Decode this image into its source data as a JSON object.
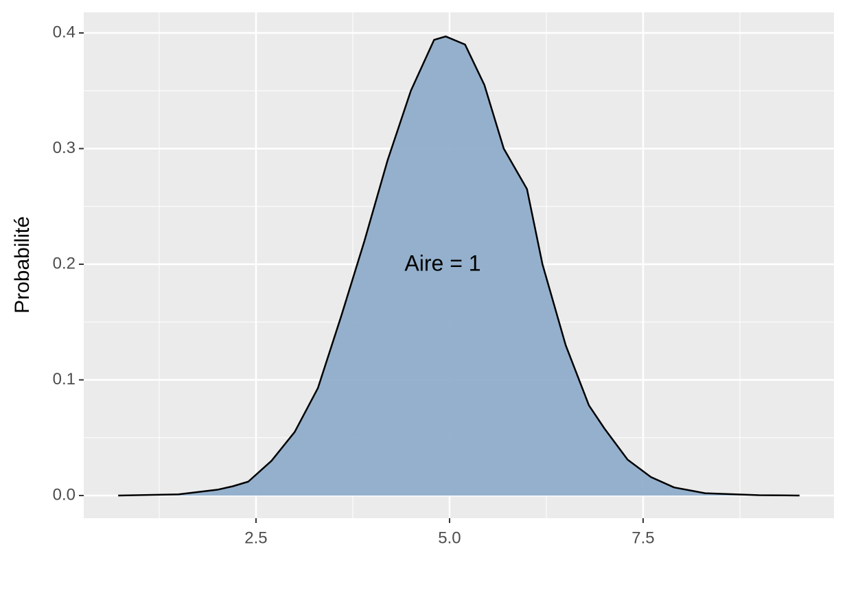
{
  "chart_data": {
    "type": "area",
    "y_label": "Probabilité",
    "annotation": "Aire = 1",
    "x": [
      0.72,
      1.5,
      2.0,
      2.2,
      2.4,
      2.7,
      3.0,
      3.3,
      3.6,
      3.9,
      4.2,
      4.5,
      4.8,
      4.95,
      5.2,
      5.45,
      5.7,
      6.0,
      6.2,
      6.5,
      6.8,
      7.0,
      7.3,
      7.6,
      7.9,
      8.3,
      9.0,
      9.52
    ],
    "values": [
      0,
      0.001,
      0.005,
      0.008,
      0.012,
      0.03,
      0.055,
      0.093,
      0.155,
      0.22,
      0.29,
      0.35,
      0.394,
      0.397,
      0.39,
      0.355,
      0.3,
      0.265,
      0.2,
      0.13,
      0.078,
      0.058,
      0.031,
      0.016,
      0.007,
      0.002,
      0.0003,
      0
    ],
    "color": "#8fadca",
    "line_color": "#000000",
    "xlim": [
      0.275,
      9.965
    ],
    "ylim": [
      -0.0196,
      0.4178
    ],
    "xticks": [
      2.5,
      {
        "value": 5,
        "label": "5.0"
      },
      7.5
    ],
    "yticks": [
      {
        "value": 0,
        "label": "0.0"
      },
      0.1,
      0.2,
      0.3,
      0.4
    ],
    "grid": true
  }
}
